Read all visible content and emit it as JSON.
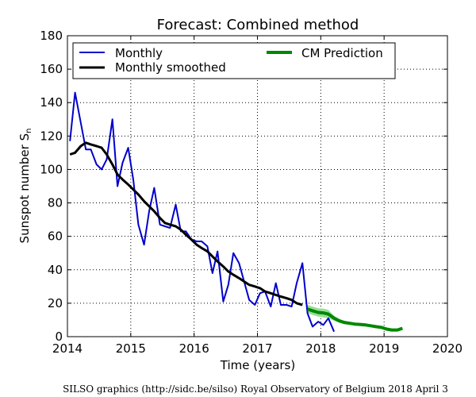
{
  "chart_data": {
    "type": "line",
    "title": "Forecast: Combined method",
    "xlabel": "Time (years)",
    "ylabel": "Sunspot number S",
    "ylabel_sub": "n",
    "xlim": [
      2014,
      2020
    ],
    "ylim": [
      0,
      180
    ],
    "xticks": [
      2014,
      2015,
      2016,
      2017,
      2018,
      2019,
      2020
    ],
    "yticks": [
      0,
      20,
      40,
      60,
      80,
      100,
      120,
      140,
      160,
      180
    ],
    "grid": true,
    "legend_position": "top",
    "series": [
      {
        "name": "Monthly",
        "color": "#0000cc",
        "x": [
          2014.04,
          2014.12,
          2014.21,
          2014.29,
          2014.37,
          2014.46,
          2014.54,
          2014.62,
          2014.71,
          2014.79,
          2014.87,
          2014.96,
          2015.04,
          2015.12,
          2015.21,
          2015.29,
          2015.37,
          2015.46,
          2015.54,
          2015.62,
          2015.71,
          2015.79,
          2015.87,
          2015.96,
          2016.04,
          2016.12,
          2016.21,
          2016.29,
          2016.37,
          2016.46,
          2016.54,
          2016.62,
          2016.71,
          2016.79,
          2016.87,
          2016.96,
          2017.04,
          2017.12,
          2017.21,
          2017.29,
          2017.37,
          2017.46,
          2017.54,
          2017.62,
          2017.71,
          2017.79,
          2017.87,
          2017.96,
          2018.04,
          2018.12,
          2018.21
        ],
        "y": [
          117,
          146,
          128,
          112,
          112,
          103,
          100,
          106,
          130,
          90,
          104,
          113,
          94,
          67,
          55,
          75,
          89,
          67,
          66,
          65,
          79,
          63,
          63,
          58,
          57,
          57,
          54,
          38,
          51,
          21,
          31,
          50,
          44,
          33,
          22,
          19,
          26,
          27,
          18,
          32,
          19,
          19,
          18,
          32,
          44,
          14,
          6,
          9,
          7,
          11,
          3
        ]
      },
      {
        "name": "Monthly smoothed",
        "color": "#000000",
        "x": [
          2014.04,
          2014.12,
          2014.21,
          2014.29,
          2014.37,
          2014.46,
          2014.54,
          2014.62,
          2014.71,
          2014.79,
          2014.87,
          2014.96,
          2015.04,
          2015.12,
          2015.21,
          2015.29,
          2015.37,
          2015.46,
          2015.54,
          2015.62,
          2015.71,
          2015.79,
          2015.87,
          2015.96,
          2016.04,
          2016.12,
          2016.21,
          2016.29,
          2016.37,
          2016.46,
          2016.54,
          2016.62,
          2016.71,
          2016.79,
          2016.87,
          2016.96,
          2017.04,
          2017.12,
          2017.21,
          2017.29,
          2017.37,
          2017.46,
          2017.54,
          2017.62,
          2017.71
        ],
        "y": [
          109,
          110,
          114,
          116,
          115,
          114,
          113,
          109,
          103,
          97,
          94,
          91,
          88,
          85,
          81,
          78,
          75,
          71,
          68,
          67,
          66,
          64,
          61,
          58,
          55,
          53,
          51,
          48,
          45,
          42,
          39,
          37,
          35,
          33,
          31,
          30,
          29,
          27,
          26,
          25,
          24,
          23,
          22,
          20,
          19
        ]
      },
      {
        "name": "CM Prediction",
        "color": "#008800",
        "band_color": "#99dd99",
        "x": [
          2017.79,
          2017.87,
          2017.96,
          2018.04,
          2018.12,
          2018.21,
          2018.29,
          2018.37,
          2018.46,
          2018.54,
          2018.62,
          2018.71,
          2018.79,
          2018.87,
          2018.96,
          2019.04,
          2019.12,
          2019.21,
          2019.29
        ],
        "y": [
          16.5,
          15.5,
          14.5,
          14.2,
          13.5,
          11,
          9.5,
          8.5,
          8,
          7.5,
          7.3,
          7,
          6.5,
          6,
          5.5,
          4.5,
          4,
          4,
          5
        ],
        "lower": [
          14,
          13,
          12,
          11.5,
          11,
          9.5,
          8.3,
          7.5,
          7.1,
          6.8,
          6.6,
          6.3,
          5.9,
          5.4,
          4.9,
          4,
          3.6,
          3.6,
          4.5
        ],
        "upper": [
          19,
          18,
          17,
          16.8,
          16,
          12.5,
          10.7,
          9.5,
          8.9,
          8.2,
          8,
          7.7,
          7.1,
          6.6,
          6.1,
          5,
          4.4,
          4.4,
          5.5
        ]
      }
    ]
  },
  "footer": "SILSO graphics (http://sidc.be/silso)  Royal Observatory of Belgium  2018 April 3"
}
